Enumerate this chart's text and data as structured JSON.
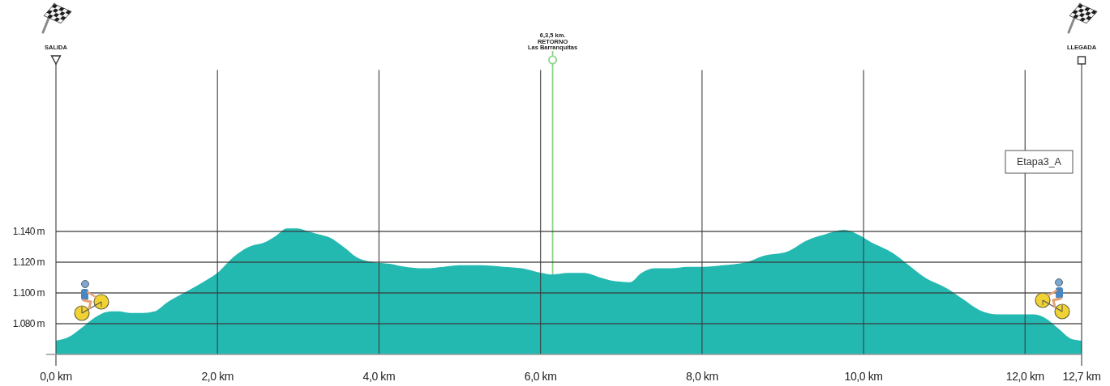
{
  "chart_data": {
    "type": "area",
    "annotations": [
      "SALIDA",
      "LLEGADA",
      "Etapa3_A"
    ],
    "x": [
      0,
      0.18,
      0.31,
      0.48,
      0.68,
      0.78,
      0.91,
      1.08,
      1.22,
      1.38,
      1.62,
      1.82,
      2.02,
      2.19,
      2.39,
      2.59,
      2.72,
      2.86,
      2.99,
      3.13,
      3.26,
      3.39,
      3.56,
      3.73,
      3.93,
      4.13,
      4.33,
      4.57,
      4.8,
      5.0,
      5.27,
      5.54,
      5.77,
      6.01,
      6.14,
      6.34,
      6.54,
      6.74,
      6.88,
      7.11,
      7.25,
      7.41,
      7.62,
      7.82,
      8.02,
      8.25,
      8.55,
      8.75,
      9.06,
      9.29,
      9.52,
      9.76,
      9.93,
      10.09,
      10.36,
      10.56,
      10.76,
      11.03,
      11.23,
      11.43,
      11.67,
      11.9,
      12.1,
      12.24,
      12.41,
      12.58,
      12.7
    ],
    "values": [
      1069,
      1072,
      1077,
      1084,
      1088,
      1088,
      1087,
      1087,
      1088,
      1094,
      1101,
      1107,
      1114,
      1123,
      1130,
      1133,
      1137,
      1142,
      1142,
      1140,
      1138,
      1136,
      1130,
      1123,
      1120,
      1119,
      1117,
      1116,
      1117,
      1118,
      1118,
      1117,
      1116,
      1113,
      1112,
      1113,
      1113,
      1110,
      1108,
      1107,
      1113,
      1116,
      1116,
      1117,
      1117,
      1118,
      1120,
      1124,
      1127,
      1134,
      1138,
      1141,
      1138,
      1133,
      1126,
      1118,
      1110,
      1103,
      1096,
      1089,
      1086,
      1086,
      1086,
      1084,
      1077,
      1070,
      1069
    ],
    "color": "#23b9b1",
    "xlim": [
      0,
      12.7
    ],
    "xticks": [
      {
        "value": 0,
        "label": "0,0 km"
      },
      {
        "value": 2,
        "label": "2,0 km"
      },
      {
        "value": 4,
        "label": "4,0 km"
      },
      {
        "value": 6,
        "label": "6,0 km"
      },
      {
        "value": 8,
        "label": "8,0 km"
      },
      {
        "value": 10,
        "label": "10,0 km"
      },
      {
        "value": 12,
        "label": "12,0 km"
      },
      {
        "value": 12.7,
        "label": "12,7 km"
      }
    ],
    "ylim": [
      1060,
      1245
    ],
    "yticks": [
      {
        "value": 1080,
        "label": "1.080 m"
      },
      {
        "value": 1100,
        "label": "1.100 m"
      },
      {
        "value": 1120,
        "label": "1.120 m"
      },
      {
        "value": 1140,
        "label": "1.140 m"
      }
    ],
    "grid": true,
    "ref_lines": [
      {
        "axis": "x",
        "value": 6.15,
        "label": "6,3,5 km.\nRETORNO\nLas Barranquitas",
        "color": "#8ad48a"
      }
    ]
  }
}
